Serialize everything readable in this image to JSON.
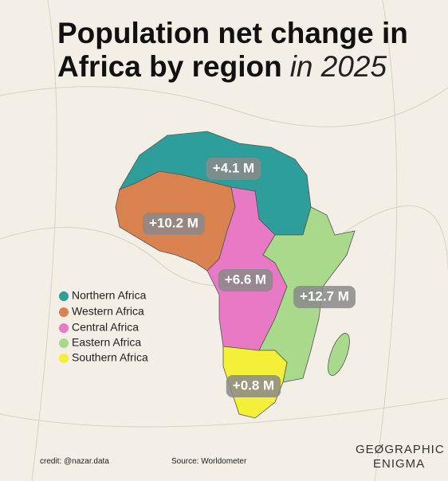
{
  "title": {
    "line1": "Population net change in",
    "line2": "Africa by region",
    "italic": "in 2025"
  },
  "regions": [
    {
      "name": "Northern Africa",
      "color": "#2e9e9a",
      "label": "+4.1 M"
    },
    {
      "name": "Western Africa",
      "color": "#d9824f",
      "label": "+10.2 M"
    },
    {
      "name": "Central Africa",
      "color": "#e879c4",
      "label": "+6.6 M"
    },
    {
      "name": "Eastern Africa",
      "color": "#a9d98a",
      "label": "+12.7 M"
    },
    {
      "name": "Southern Africa",
      "color": "#f4f03a",
      "label": "+0.8 M"
    }
  ],
  "credit": "credit: @nazar.data",
  "source": "Source: Worldometer",
  "logo": {
    "line1": "GEØGRAPHIC",
    "line2": "ENIGMA"
  }
}
